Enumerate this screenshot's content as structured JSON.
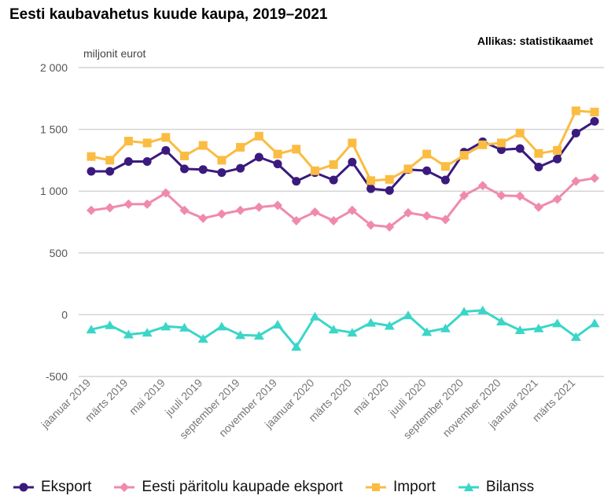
{
  "chart_data": {
    "type": "line",
    "title": "Eesti kaubavahetus kuude kaupa, 2019–2021",
    "source": "Allikas: statistikaamet",
    "ylabel": "miljonit eurot",
    "xlabel": "",
    "ylim": [
      -500,
      2000
    ],
    "yticks": [
      -500,
      0,
      500,
      1000,
      1500,
      2000
    ],
    "ytick_labels": [
      "-500",
      "0",
      "500",
      "1 000",
      "1 500",
      "2 000"
    ],
    "grid": true,
    "legend_position": "bottom",
    "categories": [
      "jaanuar 2019",
      "veebruar 2019",
      "märts 2019",
      "aprill 2019",
      "mai 2019",
      "juuni 2019",
      "juuli 2019",
      "august 2019",
      "september 2019",
      "oktoober 2019",
      "november 2019",
      "detsember 2019",
      "jaanuar 2020",
      "veebruar 2020",
      "märts 2020",
      "aprill 2020",
      "mai 2020",
      "juuni 2020",
      "juuli 2020",
      "august 2020",
      "september 2020",
      "oktoober 2020",
      "november 2020",
      "detsember 2020",
      "jaanuar 2021",
      "veebruar 2021",
      "märts 2021",
      "aprill 2021"
    ],
    "xtick_labels": [
      {
        "index": 0,
        "label": "jaanuar 2019"
      },
      {
        "index": 2,
        "label": "märts 2019"
      },
      {
        "index": 4,
        "label": "mai 2019"
      },
      {
        "index": 6,
        "label": "juuli 2019"
      },
      {
        "index": 8,
        "label": "september 2019"
      },
      {
        "index": 10,
        "label": "november 2019"
      },
      {
        "index": 12,
        "label": "jaanuar 2020"
      },
      {
        "index": 14,
        "label": "märts 2020"
      },
      {
        "index": 16,
        "label": "mai 2020"
      },
      {
        "index": 18,
        "label": "juuli 2020"
      },
      {
        "index": 20,
        "label": "september 2020"
      },
      {
        "index": 22,
        "label": "november 2020"
      },
      {
        "index": 24,
        "label": "jaanuar 2021"
      },
      {
        "index": 26,
        "label": "märts 2021"
      }
    ],
    "series": [
      {
        "name": "Eksport",
        "color": "#3b1a7e",
        "marker": "circle",
        "values": [
          1160,
          1160,
          1240,
          1240,
          1330,
          1180,
          1175,
          1150,
          1185,
          1275,
          1220,
          1080,
          1150,
          1090,
          1235,
          1020,
          1005,
          1175,
          1165,
          1090,
          1315,
          1400,
          1335,
          1345,
          1195,
          1260,
          1470,
          1565
        ]
      },
      {
        "name": "Eesti päritolu kaupade eksport",
        "color": "#f08aac",
        "marker": "diamond",
        "values": [
          845,
          865,
          895,
          895,
          985,
          845,
          780,
          815,
          845,
          870,
          885,
          760,
          830,
          760,
          845,
          725,
          710,
          825,
          800,
          770,
          965,
          1045,
          965,
          960,
          870,
          935,
          1080,
          1105
        ]
      },
      {
        "name": "Import",
        "color": "#fbbc42",
        "marker": "square",
        "values": [
          1280,
          1250,
          1405,
          1390,
          1435,
          1285,
          1370,
          1250,
          1355,
          1445,
          1300,
          1340,
          1165,
          1215,
          1390,
          1085,
          1095,
          1180,
          1300,
          1200,
          1290,
          1375,
          1390,
          1470,
          1305,
          1330,
          1650,
          1640
        ]
      },
      {
        "name": "Bilanss",
        "color": "#3ad6c8",
        "marker": "triangle",
        "values": [
          -120,
          -85,
          -160,
          -145,
          -95,
          -105,
          -195,
          -95,
          -165,
          -170,
          -80,
          -260,
          -15,
          -120,
          -145,
          -65,
          -90,
          -5,
          -140,
          -110,
          25,
          35,
          -55,
          -125,
          -110,
          -70,
          -180,
          -70
        ]
      }
    ]
  }
}
